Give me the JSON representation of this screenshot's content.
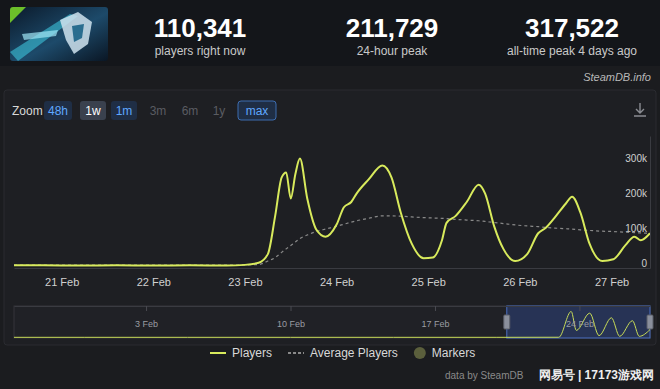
{
  "header": {
    "stats": [
      {
        "value": "110,341",
        "label": "players right now"
      },
      {
        "value": "211,729",
        "label": "24-hour peak"
      },
      {
        "value": "317,522",
        "label": "all-time peak 4 days ago"
      }
    ],
    "source": "SteamDB.info"
  },
  "toolbar": {
    "label": "Zoom",
    "buttons": [
      "48h",
      "1w",
      "1m",
      "3m",
      "6m",
      "1y",
      "max"
    ]
  },
  "chart_data": [
    {
      "type": "line",
      "x": [
        20.48,
        20.8,
        21.2,
        21.6,
        22.0,
        22.4,
        22.8,
        23.0,
        23.15,
        23.25,
        23.33,
        23.4,
        23.45,
        23.5,
        23.55,
        23.6,
        23.68,
        23.78,
        23.88,
        24.0,
        24.08,
        24.16,
        24.22,
        24.35,
        24.5,
        24.6,
        24.7,
        24.82,
        24.95,
        25.05,
        25.15,
        25.2,
        25.3,
        25.42,
        25.55,
        25.62,
        25.72,
        25.82,
        25.95,
        26.08,
        26.2,
        26.28,
        26.38,
        26.5,
        26.57,
        26.66,
        26.76,
        26.9,
        27.02,
        27.15,
        27.25,
        27.32,
        27.42
      ],
      "series": [
        {
          "name": "Players",
          "color": "#d8ea5c",
          "line_style": "solid",
          "values": [
            8000,
            8000,
            7000,
            8000,
            7000,
            8000,
            7000,
            9000,
            15000,
            40000,
            150000,
            260000,
            275000,
            200000,
            270000,
            315000,
            200000,
            110000,
            90000,
            125000,
            175000,
            190000,
            215000,
            255000,
            295000,
            260000,
            160000,
            70000,
            28000,
            30000,
            80000,
            130000,
            150000,
            190000,
            240000,
            215000,
            120000,
            55000,
            20000,
            40000,
            100000,
            115000,
            145000,
            185000,
            205000,
            160000,
            70000,
            20000,
            25000,
            65000,
            90000,
            80000,
            100000
          ]
        },
        {
          "name": "Average Players",
          "color": "#8a8a8a",
          "line_style": "dashed",
          "values": [
            8000,
            8000,
            8000,
            8000,
            8000,
            8000,
            8000,
            9000,
            10000,
            20000,
            30000,
            45000,
            55000,
            65000,
            75000,
            85000,
            95000,
            105000,
            112000,
            120000,
            126000,
            132000,
            136000,
            143000,
            150000,
            150000,
            149000,
            147000,
            145000,
            144000,
            143000,
            142000,
            140000,
            138000,
            136000,
            134000,
            131000,
            128000,
            124000,
            121000,
            119000,
            117000,
            115000,
            113000,
            112000,
            110000,
            108000,
            106000,
            105000,
            103000,
            102000,
            101000,
            100000
          ]
        },
        {
          "name": "Markers",
          "color": "#5b5f3c",
          "type": "scatter",
          "marker": "circle",
          "values": [
            null,
            null,
            null,
            null,
            null,
            null,
            null,
            null,
            null,
            null,
            null,
            null,
            null,
            null,
            null,
            null,
            null,
            null,
            null,
            null,
            null,
            null,
            null,
            null,
            null,
            null,
            null,
            null,
            null,
            null,
            null,
            null,
            null,
            null,
            null,
            null,
            null,
            null,
            null,
            null,
            null,
            null,
            null,
            null,
            null,
            null,
            null,
            null,
            null,
            null,
            null,
            null,
            null
          ]
        }
      ],
      "xlim": [
        20.48,
        27.42
      ],
      "xticks": [
        {
          "value": 21,
          "label": "21 Feb"
        },
        {
          "value": 22,
          "label": "22 Feb"
        },
        {
          "value": 23,
          "label": "23 Feb"
        },
        {
          "value": 24,
          "label": "24 Feb"
        },
        {
          "value": 25,
          "label": "25 Feb"
        },
        {
          "value": 26,
          "label": "26 Feb"
        },
        {
          "value": 27,
          "label": "27 Feb"
        }
      ],
      "ylim": [
        0,
        380000
      ],
      "yticks": [
        0,
        {
          "value": 100000,
          "label": "100k"
        },
        {
          "value": 200000,
          "label": "200k"
        },
        {
          "value": 300000,
          "label": "300k"
        }
      ],
      "grid": false,
      "legend": "bottom"
    },
    {
      "type": "line",
      "x": [
        -3.4,
        0,
        5,
        10,
        15,
        20,
        23.0,
        23.6,
        23.85,
        24.5,
        24.95,
        25.55,
        25.95,
        26.57,
        26.9,
        27.42
      ],
      "series": [
        {
          "color": "#c8dc58",
          "values": [
            8000,
            8000,
            8000,
            8000,
            8000,
            8000,
            9000,
            315000,
            90000,
            295000,
            28000,
            240000,
            20000,
            205000,
            20000,
            100000
          ]
        }
      ],
      "xlim": [
        -3.4,
        27.42
      ],
      "xticks": [
        {
          "value": 3,
          "label": "3 Feb"
        },
        {
          "value": 10,
          "label": "10 Feb"
        },
        {
          "value": 17,
          "label": "17 Feb"
        },
        {
          "value": 24,
          "label": "24 Feb"
        }
      ],
      "ylim": [
        0,
        380000
      ],
      "tick_labels": "x"
    }
  ],
  "footer": {
    "credit": "data by SteamDB",
    "watermark": "网易号 | 17173游戏网"
  }
}
